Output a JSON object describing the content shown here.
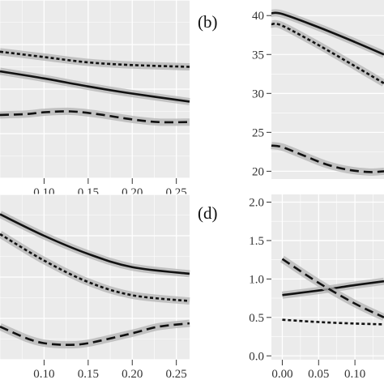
{
  "chart_data": [
    {
      "type": "line",
      "panel_label": "",
      "x_ticks": [
        "0.10",
        "0.15",
        "0.20",
        "0.25"
      ],
      "y_ticks": [],
      "xlim": [
        0.05,
        0.265
      ],
      "ylim": [
        0,
        1
      ],
      "grid": true,
      "series": [
        {
          "style": "solid",
          "ribbon": true,
          "x": [
            0.05,
            0.1,
            0.15,
            0.2,
            0.265
          ],
          "y": [
            0.6,
            0.56,
            0.515,
            0.475,
            0.43
          ]
        },
        {
          "style": "dotted",
          "ribbon": true,
          "x": [
            0.05,
            0.1,
            0.15,
            0.2,
            0.265
          ],
          "y": [
            0.71,
            0.68,
            0.65,
            0.635,
            0.625
          ]
        },
        {
          "style": "dashed",
          "ribbon": true,
          "x": [
            0.05,
            0.08,
            0.1,
            0.13,
            0.16,
            0.2,
            0.23,
            0.265
          ],
          "y": [
            0.355,
            0.36,
            0.37,
            0.375,
            0.36,
            0.33,
            0.315,
            0.315
          ]
        }
      ]
    },
    {
      "type": "line",
      "panel_label": "(b)",
      "x_ticks": [],
      "y_ticks": [
        "20",
        "25",
        "30",
        "35",
        "40"
      ],
      "xlim": [
        -0.015,
        0.14
      ],
      "ylim": [
        19,
        42
      ],
      "grid": true,
      "series": [
        {
          "style": "solid",
          "ribbon": true,
          "x": [
            -0.015,
            0.0,
            0.05,
            0.1,
            0.14
          ],
          "y": [
            40.3,
            40.2,
            38.5,
            36.6,
            35.0
          ]
        },
        {
          "style": "dotted",
          "ribbon": true,
          "x": [
            -0.015,
            0.0,
            0.05,
            0.1,
            0.14
          ],
          "y": [
            38.9,
            38.7,
            36.2,
            33.5,
            31.3
          ]
        },
        {
          "style": "dashed",
          "ribbon": true,
          "x": [
            -0.015,
            0.0,
            0.03,
            0.06,
            0.09,
            0.12,
            0.14
          ],
          "y": [
            23.3,
            23.1,
            22.0,
            20.9,
            20.2,
            19.9,
            20.0
          ]
        }
      ]
    },
    {
      "type": "line",
      "panel_label": "",
      "x_ticks": [
        "0.10",
        "0.15",
        "0.20",
        "0.25"
      ],
      "y_ticks": [],
      "xlim": [
        0.05,
        0.265
      ],
      "ylim": [
        0,
        1
      ],
      "grid": true,
      "series": [
        {
          "style": "solid",
          "ribbon": true,
          "x": [
            0.05,
            0.1,
            0.15,
            0.2,
            0.265
          ],
          "y": [
            0.88,
            0.75,
            0.64,
            0.56,
            0.52
          ]
        },
        {
          "style": "dotted",
          "ribbon": true,
          "x": [
            0.05,
            0.1,
            0.15,
            0.2,
            0.265
          ],
          "y": [
            0.76,
            0.6,
            0.47,
            0.39,
            0.355
          ]
        },
        {
          "style": "dashed",
          "ribbon": true,
          "x": [
            0.05,
            0.08,
            0.1,
            0.125,
            0.15,
            0.2,
            0.23,
            0.265
          ],
          "y": [
            0.2,
            0.13,
            0.1,
            0.09,
            0.1,
            0.16,
            0.2,
            0.22
          ]
        }
      ]
    },
    {
      "type": "line",
      "panel_label": "(d)",
      "x_ticks": [
        "0.00",
        "0.05",
        "0.10"
      ],
      "y_ticks": [
        "0.0",
        "0.5",
        "1.0",
        "1.5",
        "2.0"
      ],
      "xlim": [
        -0.015,
        0.14
      ],
      "ylim": [
        -0.05,
        2.1
      ],
      "grid": true,
      "series": [
        {
          "style": "solid",
          "ribbon": true,
          "x": [
            0.0,
            0.05,
            0.1,
            0.14
          ],
          "y": [
            0.79,
            0.85,
            0.92,
            0.97
          ]
        },
        {
          "style": "dotted",
          "ribbon": false,
          "x": [
            0.0,
            0.05,
            0.1,
            0.14
          ],
          "y": [
            0.47,
            0.44,
            0.42,
            0.41
          ]
        },
        {
          "style": "dashed",
          "ribbon": true,
          "x": [
            0.0,
            0.05,
            0.1,
            0.14
          ],
          "y": [
            1.26,
            0.95,
            0.68,
            0.5
          ]
        }
      ]
    }
  ]
}
